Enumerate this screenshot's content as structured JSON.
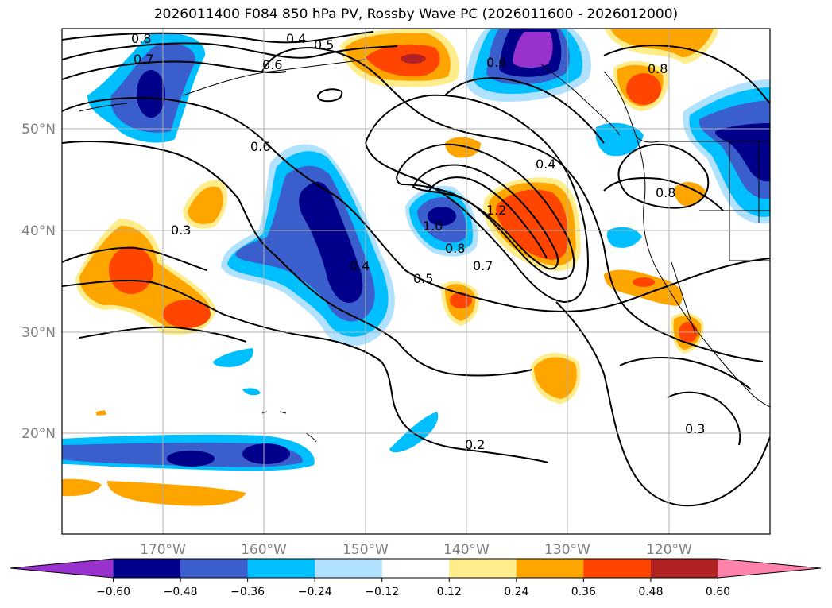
{
  "title": "2026011400 F084 850 hPa PV, Rossby Wave PC (2026011600 - 2026012000)",
  "map": {
    "lat_labels": [
      "50°N",
      "40°N",
      "30°N",
      "20°N"
    ],
    "lon_labels": [
      "170°W",
      "160°W",
      "150°W",
      "140°W",
      "130°W",
      "120°W"
    ],
    "contour_labels": [
      "0.8",
      "0.7",
      "0.6",
      "0.4",
      "0.5",
      "0.6",
      "0.3",
      "0.6",
      "0.4",
      "1.0",
      "0.8",
      "0.7",
      "0.5",
      "1.2",
      "0.4",
      "0.8",
      "0.8",
      "0.2",
      "0.3"
    ]
  },
  "colorbar": {
    "ticks": [
      "−0.60",
      "−0.48",
      "−0.36",
      "−0.24",
      "−0.12",
      "0.12",
      "0.24",
      "0.36",
      "0.48",
      "0.60"
    ],
    "colors": [
      "#9932cc",
      "#00008b",
      "#3a5fcd",
      "#00bfff",
      "#b0e2ff",
      "#ffffff",
      "#ffec8b",
      "#ffa500",
      "#ff4500",
      "#b22222",
      "#ff82ab"
    ]
  }
}
